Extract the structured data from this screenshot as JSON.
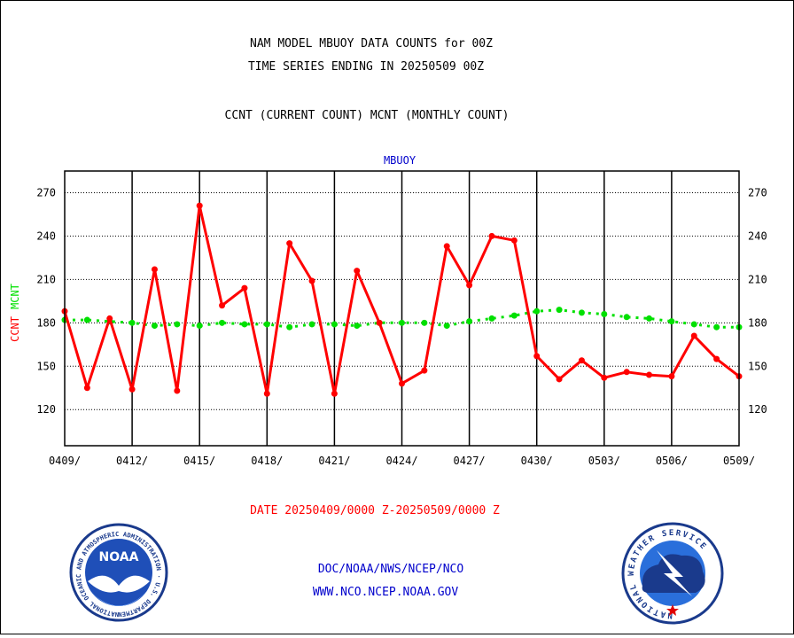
{
  "header": {
    "line1": "NAM MODEL MBUOY DATA COUNTS for 00Z",
    "line2": "TIME SERIES ENDING IN 20250509 00Z",
    "line3": "CCNT (CURRENT COUNT) MCNT (MONTHLY COUNT)"
  },
  "footer": {
    "date_range": "DATE 20250409/0000 Z-20250509/0000 Z",
    "org": "DOC/NOAA/NWS/NCEP/NCO",
    "url": "WWW.NCO.NCEP.NOAA.GOV"
  },
  "logos": {
    "noaa": {
      "center_text": "NOAA",
      "ring_text": "NATIONAL OCEANIC AND ATMOSPHERIC ADMINISTRATION · U.S. DEPARTMENT OF COMMERCE"
    },
    "nws": {
      "ring_text": "NATIONAL WEATHER SERVICE"
    }
  },
  "colors": {
    "ccnt": "#ff0000",
    "mcnt": "#00e000",
    "title": "#0000cc",
    "axis": "#000000"
  },
  "chart_data": {
    "type": "line",
    "title": "MBUOY",
    "ylabel_parts": [
      "CCNT",
      "MCNT"
    ],
    "ylim": [
      95,
      285
    ],
    "yticks": [
      120,
      150,
      180,
      210,
      240,
      270
    ],
    "x_ticks": [
      "0409/",
      "0412/",
      "0415/",
      "0418/",
      "0421/",
      "0424/",
      "0427/",
      "0430/",
      "0503/",
      "0506/",
      "0509/"
    ],
    "x": [
      "0409",
      "0410",
      "0411",
      "0412",
      "0413",
      "0414",
      "0415",
      "0416",
      "0417",
      "0418",
      "0419",
      "0420",
      "0421",
      "0422",
      "0423",
      "0424",
      "0425",
      "0426",
      "0427",
      "0428",
      "0429",
      "0430",
      "0501",
      "0502",
      "0503",
      "0504",
      "0505",
      "0506",
      "0507",
      "0508",
      "0509"
    ],
    "grid": true,
    "series": [
      {
        "name": "CCNT",
        "color": "#ff0000",
        "values": [
          188,
          135,
          183,
          134,
          217,
          133,
          261,
          192,
          204,
          131,
          235,
          209,
          131,
          216,
          180,
          138,
          147,
          233,
          206,
          240,
          237,
          157,
          141,
          154,
          142,
          146,
          144,
          143,
          171,
          155,
          143
        ]
      },
      {
        "name": "MCNT",
        "color": "#00e000",
        "values": [
          182,
          182,
          181,
          180,
          178,
          179,
          178,
          180,
          179,
          179,
          177,
          179,
          179,
          178,
          180,
          180,
          180,
          178,
          181,
          183,
          185,
          188,
          189,
          187,
          186,
          184,
          183,
          181,
          179,
          177,
          177
        ]
      }
    ]
  }
}
